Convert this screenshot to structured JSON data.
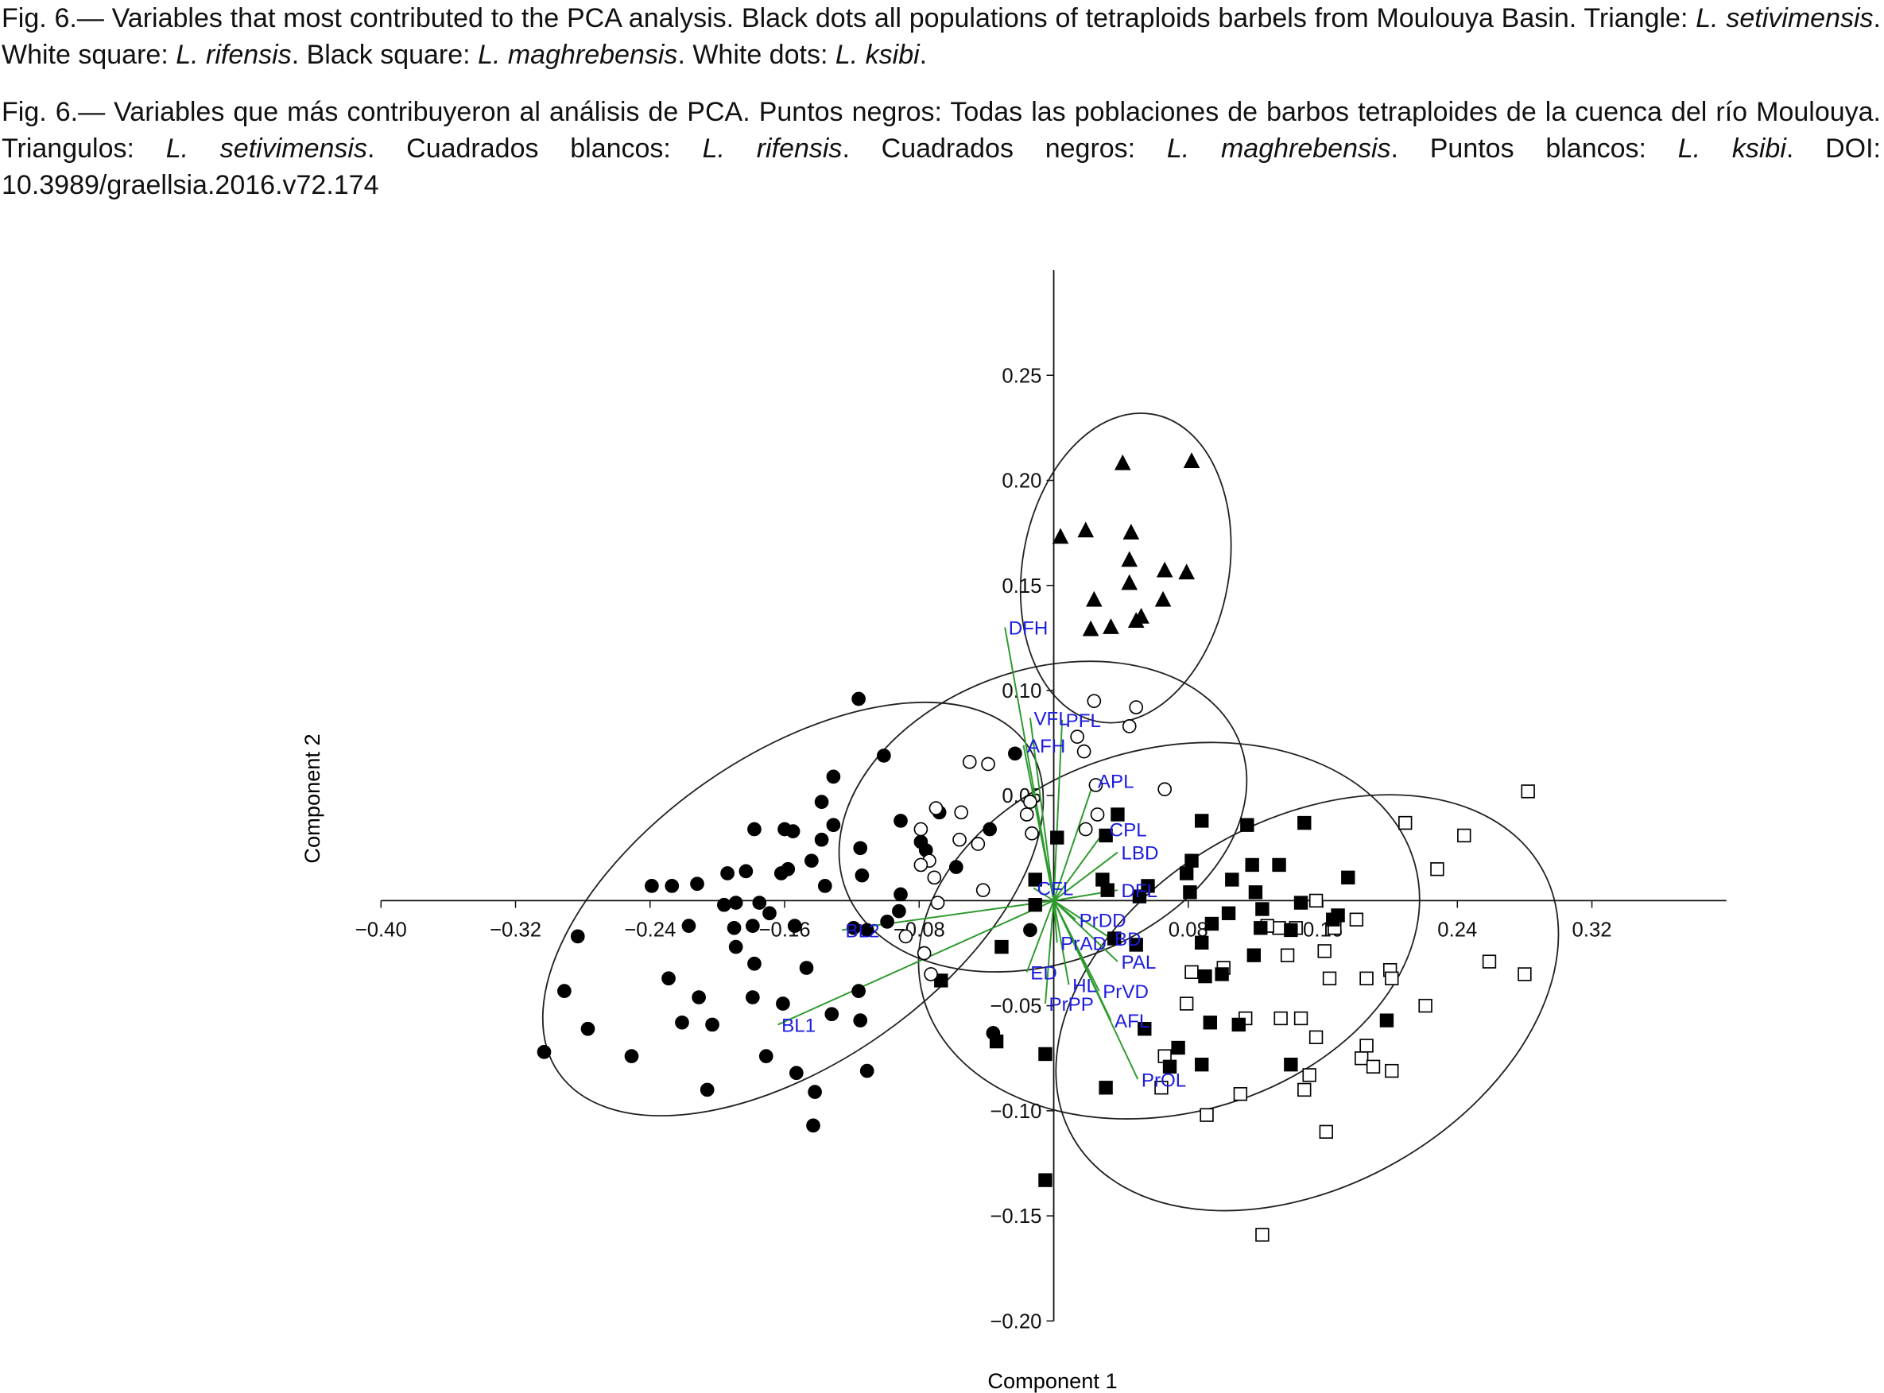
{
  "caption": {
    "en": [
      "Fig. 6.— Variables that most contributed to the PCA analysis. Black dots all populations of tetraploids barbels from Moulouya Basin. Triangle: ",
      "L. setivimensis",
      ". White square: ",
      "L. rifensis",
      ". Black square: ",
      "L. maghrebensis",
      ". White dots: ",
      "L. ksibi",
      "."
    ],
    "es": [
      "Fig. 6.— Variables que más contribuyeron al análisis de PCA. Puntos negros: Todas las poblaciones de barbos tetraploides de la cuenca del río Moulouya. Triangulos: ",
      "L. setivimensis",
      ". Cuadrados blancos: ",
      "L. rifensis",
      ". Cuadrados negros: ",
      "L. maghrebensis",
      ". Puntos blancos: ",
      "L. ksibi",
      ". DOI: 10.3989/graellsia.2016.v72.174"
    ]
  },
  "chart_data": {
    "type": "scatter",
    "x_label": "Component 1",
    "y_label": "Component 2",
    "xlim": [
      -0.4,
      0.4
    ],
    "ylim": [
      -0.2,
      0.3
    ],
    "xticks": [
      {
        "value": -0.4,
        "label": "−0.40"
      },
      {
        "value": -0.32,
        "label": "−0.32"
      },
      {
        "value": -0.24,
        "label": "−0.24"
      },
      {
        "value": -0.16,
        "label": "−0.16"
      },
      {
        "value": -0.08,
        "label": "−0.08"
      },
      0.08,
      0.16,
      0.24,
      0.32
    ],
    "yticks": [
      {
        "value": -0.2,
        "label": "−0.20"
      },
      {
        "value": -0.15,
        "label": "−0.15"
      },
      {
        "value": -0.1,
        "label": "−0.10"
      },
      {
        "value": -0.05,
        "label": "−0.05"
      },
      0.05,
      {
        "value": 0.1,
        "label": "0.10"
      },
      0.15,
      {
        "value": 0.2,
        "label": "0.20"
      },
      0.25
    ],
    "series": [
      {
        "marker": "circle",
        "color": "#000000",
        "x": [
          -0.116,
          -0.023,
          -0.101,
          -0.131,
          -0.138,
          -0.155,
          -0.178,
          -0.16,
          -0.131,
          -0.091,
          -0.068,
          -0.079,
          -0.058,
          -0.038,
          -0.138,
          -0.115,
          -0.144,
          -0.076,
          -0.158,
          -0.162,
          -0.183,
          -0.194,
          -0.212,
          -0.239,
          -0.227,
          -0.196,
          -0.189,
          -0.175,
          -0.169,
          -0.136,
          -0.114,
          -0.091,
          -0.092,
          -0.099,
          -0.119,
          -0.111,
          -0.154,
          -0.179,
          -0.19,
          -0.217,
          -0.283,
          -0.189,
          -0.178,
          -0.147,
          -0.229,
          -0.179,
          -0.161,
          -0.211,
          -0.291,
          -0.116,
          -0.132,
          -0.115,
          -0.221,
          -0.203,
          -0.277,
          -0.251,
          -0.171,
          -0.111,
          -0.153,
          -0.206,
          -0.142,
          -0.143,
          -0.303,
          -0.014,
          -0.036
        ],
        "y": [
          0.096,
          0.07,
          0.069,
          0.059,
          0.047,
          0.033,
          0.034,
          0.034,
          0.036,
          0.038,
          0.042,
          0.028,
          0.016,
          0.034,
          0.029,
          0.025,
          0.019,
          0.024,
          0.015,
          0.013,
          0.014,
          0.013,
          0.008,
          0.007,
          0.007,
          -0.002,
          -0.001,
          -0.001,
          -0.006,
          0.007,
          0.012,
          0.003,
          -0.005,
          -0.01,
          -0.013,
          -0.014,
          -0.012,
          -0.012,
          -0.013,
          -0.012,
          -0.017,
          -0.022,
          -0.03,
          -0.032,
          -0.037,
          -0.046,
          -0.049,
          -0.046,
          -0.043,
          -0.043,
          -0.054,
          -0.057,
          -0.058,
          -0.059,
          -0.061,
          -0.074,
          -0.074,
          -0.081,
          -0.082,
          -0.09,
          -0.091,
          -0.107,
          -0.072,
          -0.014,
          -0.063
        ]
      },
      {
        "marker": "triangle",
        "color": "#000000",
        "x": [
          0.041,
          0.082,
          0.004,
          0.019,
          0.046,
          0.045,
          0.066,
          0.079,
          0.045,
          0.024,
          0.065,
          0.022,
          0.034,
          0.049,
          0.052
        ],
        "y": [
          0.208,
          0.209,
          0.173,
          0.176,
          0.175,
          0.162,
          0.157,
          0.156,
          0.151,
          0.143,
          0.143,
          0.129,
          0.13,
          0.133,
          0.135
        ]
      },
      {
        "marker": "square",
        "color": "#ffffff",
        "x": [
          0.282,
          0.209,
          0.244,
          0.228,
          0.18,
          0.156,
          0.167,
          0.144,
          0.139,
          0.161,
          0.2,
          0.201,
          0.164,
          0.186,
          0.259,
          0.28,
          0.221,
          0.079,
          0.082,
          0.101,
          0.114,
          0.135,
          0.147,
          0.156,
          0.186,
          0.183,
          0.19,
          0.201,
          0.152,
          0.149,
          0.064,
          0.066,
          0.091,
          0.111,
          0.162,
          0.124,
          0.134,
          0.127
        ],
        "y": [
          0.052,
          0.037,
          0.031,
          0.015,
          -0.009,
          0.0,
          -0.013,
          -0.013,
          -0.026,
          -0.024,
          -0.033,
          -0.037,
          -0.037,
          -0.037,
          -0.029,
          -0.035,
          -0.05,
          -0.049,
          -0.034,
          -0.032,
          -0.056,
          -0.056,
          -0.056,
          -0.065,
          -0.069,
          -0.075,
          -0.079,
          -0.081,
          -0.083,
          -0.09,
          -0.089,
          -0.074,
          -0.102,
          -0.092,
          -0.11,
          -0.159,
          -0.013,
          -0.012
        ]
      },
      {
        "marker": "square",
        "color": "#000000",
        "x": [
          0.088,
          0.115,
          0.149,
          0.038,
          0.031,
          0.082,
          0.118,
          0.134,
          0.175,
          0.029,
          0.079,
          0.106,
          0.056,
          0.051,
          0.032,
          0.081,
          0.12,
          0.147,
          0.124,
          0.169,
          0.104,
          0.094,
          0.036,
          0.049,
          0.088,
          0.123,
          0.119,
          0.09,
          0.1,
          0.141,
          0.166,
          -0.011,
          0.002,
          -0.011,
          -0.031,
          0.093,
          0.11,
          0.074,
          0.088,
          0.198,
          0.141,
          0.054,
          0.031,
          0.069,
          -0.034,
          -0.005,
          -0.067,
          -0.005
        ],
        "y": [
          0.038,
          0.036,
          0.037,
          0.041,
          0.031,
          0.019,
          0.017,
          0.017,
          0.011,
          0.01,
          0.013,
          0.01,
          0.007,
          0.002,
          0.005,
          0.004,
          0.004,
          -0.001,
          -0.004,
          -0.007,
          -0.006,
          -0.011,
          -0.018,
          -0.021,
          -0.02,
          -0.013,
          -0.026,
          -0.036,
          -0.035,
          -0.014,
          -0.009,
          -0.002,
          0.03,
          0.01,
          -0.022,
          -0.058,
          -0.059,
          -0.07,
          -0.078,
          -0.057,
          -0.078,
          -0.061,
          -0.089,
          -0.079,
          -0.067,
          -0.073,
          -0.038,
          -0.133
        ]
      },
      {
        "marker": "circle",
        "color": "#ffffff",
        "x": [
          0.024,
          0.049,
          0.045,
          0.014,
          0.018,
          -0.05,
          -0.039,
          0.025,
          0.066,
          -0.014,
          -0.055,
          -0.07,
          -0.016,
          0.026,
          0.019,
          -0.013,
          -0.079,
          -0.056,
          -0.045,
          -0.074,
          -0.079,
          -0.071,
          -0.069,
          -0.088,
          -0.077,
          -0.073,
          -0.042
        ],
        "y": [
          0.095,
          0.092,
          0.083,
          0.078,
          0.071,
          0.066,
          0.065,
          0.055,
          0.053,
          0.047,
          0.042,
          0.044,
          0.041,
          0.041,
          0.034,
          0.032,
          0.034,
          0.029,
          0.027,
          0.019,
          0.017,
          0.011,
          -0.001,
          -0.017,
          -0.025,
          -0.035,
          0.005
        ]
      }
    ],
    "loadings": {
      "color": "#2e9a2e",
      "label_color": "#1c1ce0",
      "labels": [
        "DFH",
        "VFL",
        "PFL",
        "AFH",
        "APL",
        "CPL",
        "LBD",
        "CFL",
        "DFL",
        "PrDD",
        "PrAD",
        "BD",
        "PAL",
        "ED",
        "HL",
        "PrPP",
        "PrVD",
        "AFL",
        "PrOL",
        "BL2",
        "BL1"
      ],
      "x": [
        -0.029,
        -0.014,
        0.005,
        -0.018,
        0.024,
        0.031,
        0.038,
        -0.012,
        0.038,
        0.013,
        0.002,
        0.034,
        0.038,
        -0.016,
        0.009,
        -0.005,
        0.027,
        0.034,
        0.05,
        -0.126,
        -0.164
      ],
      "y": [
        0.13,
        0.087,
        0.086,
        0.074,
        0.057,
        0.034,
        0.023,
        0.006,
        0.005,
        -0.009,
        -0.02,
        -0.018,
        -0.029,
        -0.034,
        -0.04,
        -0.049,
        -0.043,
        -0.057,
        -0.085,
        -0.014,
        -0.059
      ]
    }
  }
}
